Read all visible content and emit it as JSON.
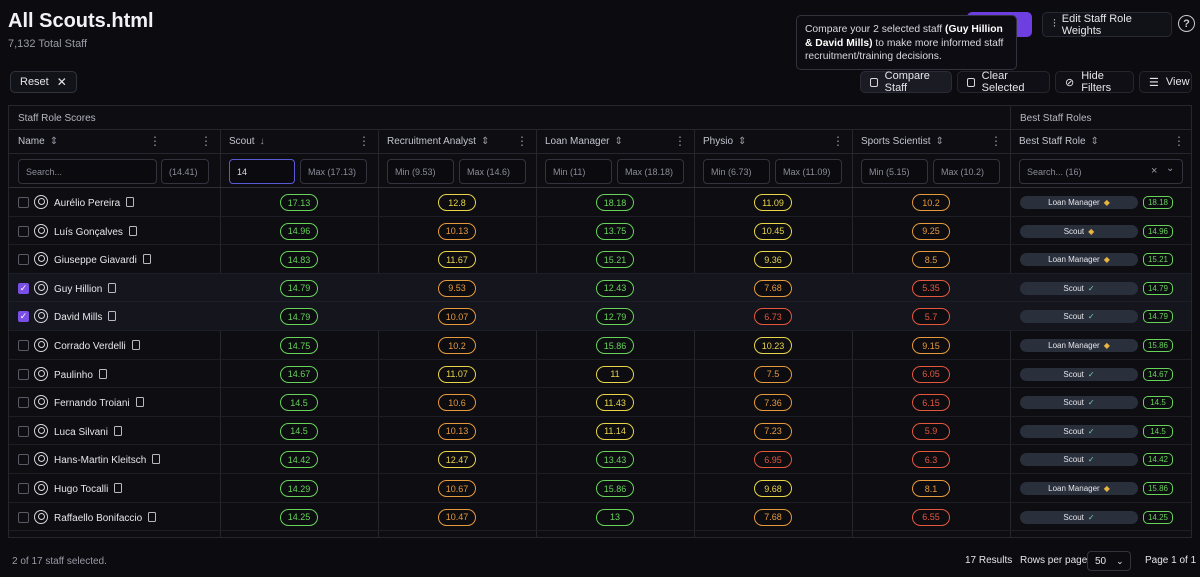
{
  "page": {
    "title": "All Scouts.html",
    "subtitle": "7,132 Total Staff"
  },
  "toolbar": {
    "edit_weights_label": "Edit Staff Role Weights",
    "help_label": "?",
    "reset_label": "Reset",
    "reset_icon": "x-icon",
    "compare_label": "Compare Staff",
    "clear_label": "Clear Selected",
    "hide_filters_label": "Hide Filters",
    "view_label": "View"
  },
  "tooltip": {
    "text_before": "Compare your 2 selected staff ",
    "bold": "(Guy Hillion & David Mills)",
    "text_after": " to make more informed staff recruitment/training decisions."
  },
  "grid": {
    "group_scores_label": "Staff Role Scores",
    "group_best_label": "Best Staff Roles",
    "columns": [
      {
        "label": "Name",
        "sort": "⇕"
      },
      {
        "label": "",
        "sort": ""
      },
      {
        "label": "Scout",
        "sort": "↓"
      },
      {
        "label": "Recruitment Analyst",
        "sort": "⇕"
      },
      {
        "label": "Loan Manager",
        "sort": "⇕"
      },
      {
        "label": "Physio",
        "sort": "⇕"
      },
      {
        "label": "Sports Scientist",
        "sort": "⇕"
      },
      {
        "label": "Best Staff Role",
        "sort": "⇕"
      }
    ],
    "filters": {
      "name_placeholder": "Search...",
      "hidden_max": "(14.41)",
      "scout_min": "14",
      "scout_max": "Max (17.13)",
      "ra_min": "Min (9.53)",
      "ra_max": "Max (14.6)",
      "lm_min": "Min (11)",
      "lm_max": "Max (18.18)",
      "physio_min": "Min (6.73)",
      "physio_max": "Max (11.09)",
      "ss_min": "Min (5.15)",
      "ss_max": "Max (10.2)",
      "best_role_placeholder": "Search... (16)",
      "clear_icon": "×",
      "dropdown_icon": "⌄"
    },
    "rows": [
      {
        "name": "Aurélio Pereira",
        "selected": false,
        "scout": "17.13",
        "ra": "12.8",
        "lm": "18.18",
        "physio": "11.09",
        "ss": "10.2",
        "best_role": "Loan Manager",
        "best_icon": "◆",
        "best_val": "18.18"
      },
      {
        "name": "Luís Gonçalves",
        "selected": false,
        "scout": "14.96",
        "ra": "10.13",
        "lm": "13.75",
        "physio": "10.45",
        "ss": "9.25",
        "best_role": "Scout",
        "best_icon": "◆",
        "best_val": "14.96"
      },
      {
        "name": "Giuseppe Giavardi",
        "selected": false,
        "scout": "14.83",
        "ra": "11.67",
        "lm": "15.21",
        "physio": "9.36",
        "ss": "8.5",
        "best_role": "Loan Manager",
        "best_icon": "◆",
        "best_val": "15.21"
      },
      {
        "name": "Guy Hillion",
        "selected": true,
        "scout": "14.79",
        "ra": "9.53",
        "lm": "12.43",
        "physio": "7.68",
        "ss": "5.35",
        "best_role": "Scout",
        "best_icon": "✓",
        "best_val": "14.79"
      },
      {
        "name": "David Mills",
        "selected": true,
        "scout": "14.79",
        "ra": "10.07",
        "lm": "12.79",
        "physio": "6.73",
        "ss": "5.7",
        "best_role": "Scout",
        "best_icon": "✓",
        "best_val": "14.79"
      },
      {
        "name": "Corrado Verdelli",
        "selected": false,
        "scout": "14.75",
        "ra": "10.2",
        "lm": "15.86",
        "physio": "10.23",
        "ss": "9.15",
        "best_role": "Loan Manager",
        "best_icon": "◆",
        "best_val": "15.86"
      },
      {
        "name": "Paulinho",
        "selected": false,
        "scout": "14.67",
        "ra": "11.07",
        "lm": "11",
        "physio": "7.5",
        "ss": "6.05",
        "best_role": "Scout",
        "best_icon": "✓",
        "best_val": "14.67"
      },
      {
        "name": "Fernando Troiani",
        "selected": false,
        "scout": "14.5",
        "ra": "10.6",
        "lm": "11.43",
        "physio": "7.36",
        "ss": "6.15",
        "best_role": "Scout",
        "best_icon": "✓",
        "best_val": "14.5"
      },
      {
        "name": "Luca Silvani",
        "selected": false,
        "scout": "14.5",
        "ra": "10.13",
        "lm": "11.14",
        "physio": "7.23",
        "ss": "5.9",
        "best_role": "Scout",
        "best_icon": "✓",
        "best_val": "14.5"
      },
      {
        "name": "Hans-Martin Kleitsch",
        "selected": false,
        "scout": "14.42",
        "ra": "12.47",
        "lm": "13.43",
        "physio": "6.95",
        "ss": "6.3",
        "best_role": "Scout",
        "best_icon": "✓",
        "best_val": "14.42"
      },
      {
        "name": "Hugo Tocalli",
        "selected": false,
        "scout": "14.29",
        "ra": "10.67",
        "lm": "15.86",
        "physio": "9.68",
        "ss": "8.1",
        "best_role": "Loan Manager",
        "best_icon": "◆",
        "best_val": "15.86"
      },
      {
        "name": "Raffaello Bonifaccio",
        "selected": false,
        "scout": "14.25",
        "ra": "10.47",
        "lm": "13",
        "physio": "7.68",
        "ss": "6.55",
        "best_role": "Scout",
        "best_icon": "✓",
        "best_val": "14.25"
      }
    ]
  },
  "footer": {
    "selected_text": "2 of 17 staff selected.",
    "results_text": "17 Results",
    "rows_per_page_label": "Rows per page",
    "rows_per_page_value": "50",
    "page_text": "Page 1 of 1"
  },
  "colors": {
    "green": "#67d35a",
    "yellow": "#e8d54a",
    "orange": "#e69a3c",
    "red": "#e4573d",
    "accent": "#7a4fe6",
    "diamond": "#e7b540",
    "check": "#6fd3b6"
  }
}
